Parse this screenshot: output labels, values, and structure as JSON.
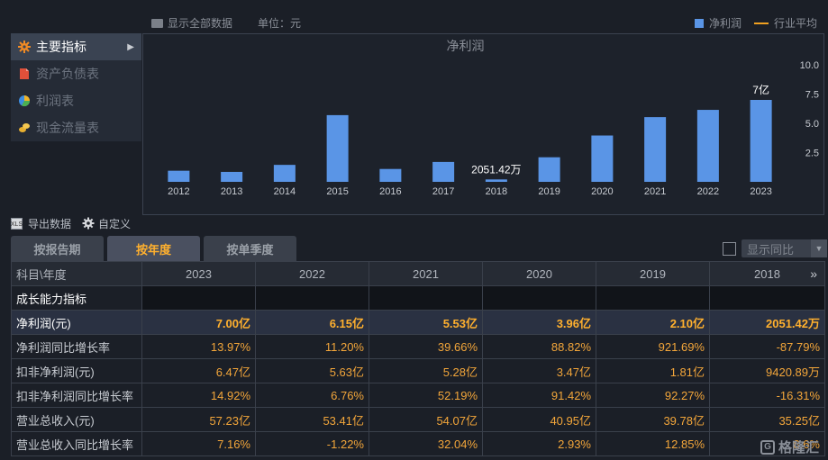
{
  "topbar": {
    "show_all_label": "显示全部数据",
    "unit_label": "单位：元",
    "legend_net_profit": "净利润",
    "legend_industry_avg": "行业平均"
  },
  "menu": {
    "items": [
      {
        "label": "主要指标",
        "active": true
      },
      {
        "label": "资产负债表",
        "active": false
      },
      {
        "label": "利润表",
        "active": false
      },
      {
        "label": "现金流量表",
        "active": false
      }
    ]
  },
  "chart_data": {
    "type": "bar",
    "title": "净利润",
    "categories": [
      "2012",
      "2013",
      "2014",
      "2015",
      "2016",
      "2017",
      "2018",
      "2019",
      "2020",
      "2021",
      "2022",
      "2023"
    ],
    "series": [
      {
        "name": "净利润",
        "values": [
          0.95,
          0.85,
          1.45,
          5.7,
          1.1,
          1.7,
          0.2051,
          2.1,
          3.96,
          5.53,
          6.15,
          7.0
        ],
        "color": "#5a95e6"
      }
    ],
    "y_ticks": [
      "2.5",
      "5.0",
      "7.5",
      "10.0"
    ],
    "ylim": [
      0,
      10
    ],
    "annotations": [
      {
        "category": "2018",
        "text": "2051.42万"
      },
      {
        "category": "2023",
        "text": "7亿"
      }
    ],
    "grid": false
  },
  "tools": {
    "export_label": "导出数据",
    "custom_label": "自定义"
  },
  "tabs": [
    {
      "label": "按报告期",
      "active": false
    },
    {
      "label": "按年度",
      "active": true
    },
    {
      "label": "按单季度",
      "active": false
    }
  ],
  "yoy_select": {
    "label": "显示同比"
  },
  "table": {
    "header_label": "科目\\年度",
    "years": [
      "2023",
      "2022",
      "2021",
      "2020",
      "2019",
      "2018"
    ],
    "more_icon": "»",
    "section_label": "成长能力指标",
    "rows": [
      {
        "label": "净利润(元)",
        "values": [
          "7.00亿",
          "6.15亿",
          "5.53亿",
          "3.96亿",
          "2.10亿",
          "2051.42万"
        ],
        "highlight": true
      },
      {
        "label": "净利润同比增长率",
        "values": [
          "13.97%",
          "11.20%",
          "39.66%",
          "88.82%",
          "921.69%",
          "-87.79%"
        ],
        "highlight": false
      },
      {
        "label": "扣非净利润(元)",
        "values": [
          "6.47亿",
          "5.63亿",
          "5.28亿",
          "3.47亿",
          "1.81亿",
          "9420.89万"
        ],
        "highlight": false
      },
      {
        "label": "扣非净利润同比增长率",
        "values": [
          "14.92%",
          "6.76%",
          "52.19%",
          "91.42%",
          "92.27%",
          "-16.31%"
        ],
        "highlight": false
      },
      {
        "label": "营业总收入(元)",
        "values": [
          "57.23亿",
          "53.41亿",
          "54.07亿",
          "40.95亿",
          "39.78亿",
          "35.25亿"
        ],
        "highlight": false
      },
      {
        "label": "营业总收入同比增长率",
        "values": [
          "7.16%",
          "-1.22%",
          "32.04%",
          "2.93%",
          "12.85%",
          "8.6%"
        ],
        "highlight": false
      }
    ]
  },
  "watermark": {
    "text": "格隆汇",
    "logo": "G"
  }
}
